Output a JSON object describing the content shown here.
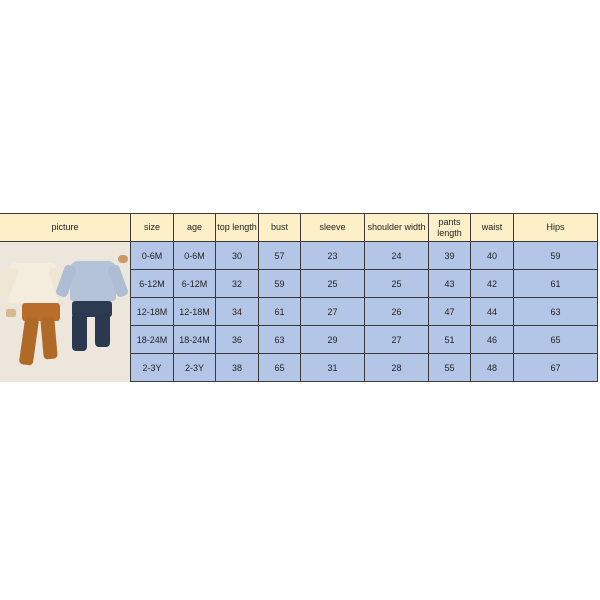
{
  "headers": [
    "picture",
    "size",
    "age",
    "top length",
    "bust",
    "sleeve",
    "shoulder width",
    "pants length",
    "waist",
    "Hips"
  ],
  "rows": [
    [
      "0-6M",
      "0-6M",
      "30",
      "57",
      "23",
      "24",
      "39",
      "40",
      "59"
    ],
    [
      "6-12M",
      "6-12M",
      "32",
      "59",
      "25",
      "25",
      "43",
      "42",
      "61"
    ],
    [
      "12-18M",
      "12-18M",
      "34",
      "61",
      "27",
      "26",
      "47",
      "44",
      "63"
    ],
    [
      "18-24M",
      "18-24M",
      "36",
      "63",
      "29",
      "27",
      "51",
      "46",
      "65"
    ],
    [
      "2-3Y",
      "2-3Y",
      "38",
      "65",
      "31",
      "28",
      "55",
      "48",
      "67"
    ]
  ],
  "colors": {
    "header": "#fdf0c8",
    "cell": "#b4c6e7",
    "photo_bg": "#ece6dc"
  }
}
